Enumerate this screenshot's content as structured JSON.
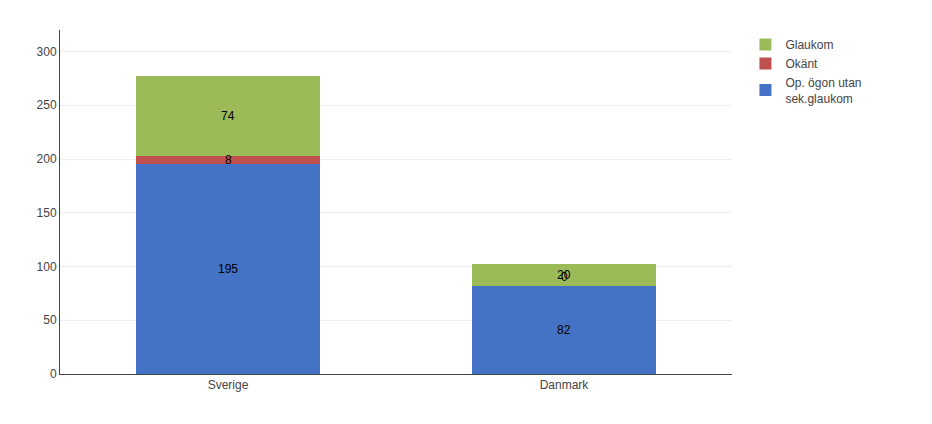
{
  "chart_data": {
    "type": "bar",
    "stacked": true,
    "categories": [
      "Sverige",
      "Danmark"
    ],
    "series": [
      {
        "name": "Op. ögon utan\nsek.glaukom",
        "color": "#4472C4",
        "values": [
          195,
          82
        ]
      },
      {
        "name": "Okänt",
        "color": "#C0504D",
        "values": [
          8,
          0
        ]
      },
      {
        "name": "Glaukom",
        "color": "#9BBB59",
        "values": [
          74,
          20
        ]
      }
    ],
    "ylim": [
      0,
      320
    ],
    "yticks": [
      0,
      50,
      100,
      150,
      200,
      250,
      300
    ],
    "grid": true,
    "legend": "upper right",
    "data_labels": true
  }
}
